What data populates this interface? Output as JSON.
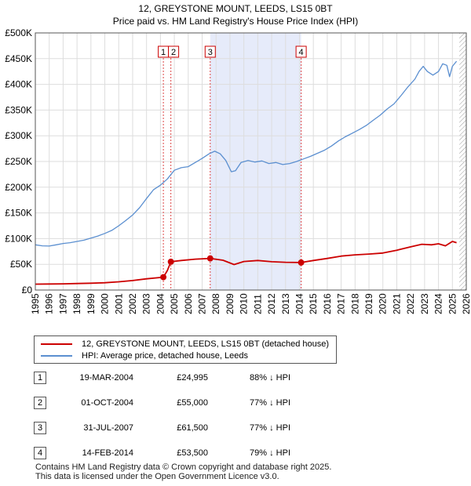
{
  "title_line1": "12, GREYSTONE MOUNT, LEEDS, LS15 0BT",
  "title_line2": "Price paid vs. HM Land Registry's House Price Index (HPI)",
  "chart_data": {
    "type": "line",
    "title": "12, GREYSTONE MOUNT, LEEDS, LS15 0BT — Price paid vs. HM Land Registry's House Price Index (HPI)",
    "xlabel": "",
    "ylabel": "",
    "xlim": [
      1995,
      2026
    ],
    "ylim": [
      0,
      500000
    ],
    "x_ticks": [
      "1995",
      "1996",
      "1997",
      "1998",
      "1999",
      "2000",
      "2001",
      "2002",
      "2003",
      "2004",
      "2005",
      "2006",
      "2007",
      "2008",
      "2009",
      "2010",
      "2011",
      "2012",
      "2013",
      "2014",
      "2015",
      "2016",
      "2017",
      "2018",
      "2019",
      "2020",
      "2021",
      "2022",
      "2023",
      "2024",
      "2025",
      "2026"
    ],
    "y_ticks": [
      {
        "value": 0,
        "label": "£0"
      },
      {
        "value": 50000,
        "label": "£50K"
      },
      {
        "value": 100000,
        "label": "£100K"
      },
      {
        "value": 150000,
        "label": "£150K"
      },
      {
        "value": 200000,
        "label": "£200K"
      },
      {
        "value": 250000,
        "label": "£250K"
      },
      {
        "value": 300000,
        "label": "£300K"
      },
      {
        "value": 350000,
        "label": "£350K"
      },
      {
        "value": 400000,
        "label": "£400K"
      },
      {
        "value": 450000,
        "label": "£450K"
      },
      {
        "value": 500000,
        "label": "£500K"
      }
    ],
    "series": [
      {
        "name": "12, GREYSTONE MOUNT, LEEDS, LS15 0BT (detached house)",
        "color": "#cc0000",
        "points": [
          [
            1995.0,
            11500
          ],
          [
            1996.0,
            11800
          ],
          [
            1997.0,
            12100
          ],
          [
            1998.0,
            12700
          ],
          [
            1999.0,
            13300
          ],
          [
            2000.0,
            14200
          ],
          [
            2001.0,
            16000
          ],
          [
            2002.0,
            18500
          ],
          [
            2003.0,
            21800
          ],
          [
            2004.21,
            24995
          ],
          [
            2004.5,
            38000
          ],
          [
            2004.75,
            55000
          ],
          [
            2005.5,
            57500
          ],
          [
            2006.5,
            60000
          ],
          [
            2007.58,
            61500
          ],
          [
            2008.5,
            58000
          ],
          [
            2009.3,
            49500
          ],
          [
            2010.0,
            55500
          ],
          [
            2011.0,
            57500
          ],
          [
            2012.0,
            55000
          ],
          [
            2013.0,
            54000
          ],
          [
            2014.12,
            53500
          ],
          [
            2015.0,
            57500
          ],
          [
            2016.0,
            61500
          ],
          [
            2017.0,
            66000
          ],
          [
            2018.0,
            68500
          ],
          [
            2019.0,
            70000
          ],
          [
            2020.0,
            72000
          ],
          [
            2021.0,
            77500
          ],
          [
            2022.0,
            84000
          ],
          [
            2022.8,
            89000
          ],
          [
            2023.5,
            88000
          ],
          [
            2024.0,
            90000
          ],
          [
            2024.5,
            86000
          ],
          [
            2025.0,
            94500
          ],
          [
            2025.3,
            92000
          ]
        ]
      },
      {
        "name": "HPI: Average price, detached house, Leeds",
        "color": "#5b8fd0",
        "points": [
          [
            1995.0,
            88000
          ],
          [
            1995.5,
            86000
          ],
          [
            1996.0,
            85500
          ],
          [
            1996.5,
            88000
          ],
          [
            1997.0,
            90500
          ],
          [
            1997.5,
            92000
          ],
          [
            1998.0,
            94500
          ],
          [
            1998.5,
            97000
          ],
          [
            1999.0,
            101000
          ],
          [
            1999.5,
            105000
          ],
          [
            2000.0,
            110000
          ],
          [
            2000.5,
            116000
          ],
          [
            2001.0,
            125000
          ],
          [
            2001.5,
            135000
          ],
          [
            2002.0,
            146000
          ],
          [
            2002.5,
            160000
          ],
          [
            2003.0,
            178000
          ],
          [
            2003.5,
            195000
          ],
          [
            2004.0,
            204000
          ],
          [
            2004.5,
            216000
          ],
          [
            2005.0,
            233000
          ],
          [
            2005.5,
            238000
          ],
          [
            2006.0,
            240000
          ],
          [
            2006.5,
            248000
          ],
          [
            2007.0,
            256000
          ],
          [
            2007.5,
            265000
          ],
          [
            2007.9,
            270000
          ],
          [
            2008.3,
            265000
          ],
          [
            2008.7,
            252000
          ],
          [
            2009.1,
            230000
          ],
          [
            2009.4,
            232000
          ],
          [
            2009.8,
            248000
          ],
          [
            2010.3,
            252000
          ],
          [
            2010.8,
            249000
          ],
          [
            2011.3,
            251000
          ],
          [
            2011.8,
            246000
          ],
          [
            2012.3,
            248000
          ],
          [
            2012.8,
            244000
          ],
          [
            2013.3,
            246000
          ],
          [
            2013.8,
            250000
          ],
          [
            2014.3,
            255000
          ],
          [
            2014.8,
            260000
          ],
          [
            2015.3,
            266000
          ],
          [
            2015.8,
            272000
          ],
          [
            2016.3,
            280000
          ],
          [
            2016.8,
            290000
          ],
          [
            2017.3,
            298000
          ],
          [
            2017.8,
            305000
          ],
          [
            2018.3,
            312000
          ],
          [
            2018.8,
            320000
          ],
          [
            2019.3,
            330000
          ],
          [
            2019.8,
            340000
          ],
          [
            2020.3,
            352000
          ],
          [
            2020.8,
            362000
          ],
          [
            2021.3,
            378000
          ],
          [
            2021.8,
            395000
          ],
          [
            2022.3,
            410000
          ],
          [
            2022.6,
            425000
          ],
          [
            2022.9,
            435000
          ],
          [
            2023.2,
            425000
          ],
          [
            2023.6,
            418000
          ],
          [
            2024.0,
            425000
          ],
          [
            2024.3,
            440000
          ],
          [
            2024.6,
            437000
          ],
          [
            2024.8,
            415000
          ],
          [
            2025.0,
            435000
          ],
          [
            2025.3,
            445000
          ]
        ]
      }
    ],
    "sale_markers": [
      {
        "label": "1",
        "x": 2004.21,
        "y": 24995
      },
      {
        "label": "2",
        "x": 2004.75,
        "y": 55000
      },
      {
        "label": "3",
        "x": 2007.58,
        "y": 61500
      },
      {
        "label": "4",
        "x": 2014.12,
        "y": 53500
      }
    ],
    "shaded_range": [
      2007.58,
      2014.12
    ],
    "hatched_from": 2025.5
  },
  "legend": {
    "items": [
      {
        "label": "12, GREYSTONE MOUNT, LEEDS, LS15 0BT (detached house)",
        "color": "#cc0000"
      },
      {
        "label": "HPI: Average price, detached house, Leeds",
        "color": "#5b8fd0"
      }
    ]
  },
  "sales": [
    {
      "num": "1",
      "date": "19-MAR-2004",
      "price": "£24,995",
      "hpi": "88% ↓ HPI"
    },
    {
      "num": "2",
      "date": "01-OCT-2004",
      "price": "£55,000",
      "hpi": "77% ↓ HPI"
    },
    {
      "num": "3",
      "date": "31-JUL-2007",
      "price": "£61,500",
      "hpi": "77% ↓ HPI"
    },
    {
      "num": "4",
      "date": "14-FEB-2014",
      "price": "£53,500",
      "hpi": "79% ↓ HPI"
    }
  ],
  "footer": {
    "line1": "Contains HM Land Registry data © Crown copyright and database right 2025.",
    "line2": "This data is licensed under the Open Government Licence v3.0."
  }
}
